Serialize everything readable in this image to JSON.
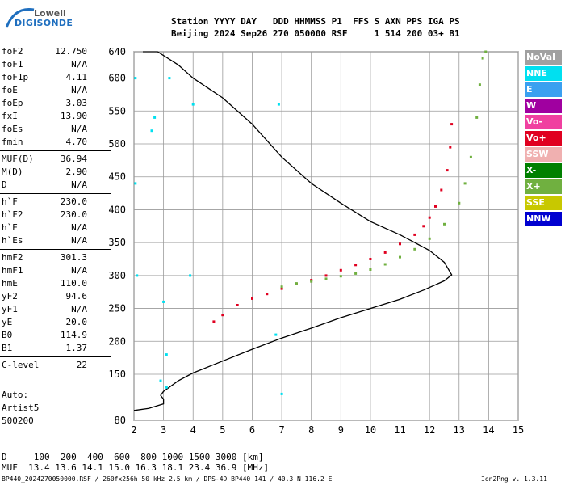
{
  "logo": {
    "line1": "Lowell",
    "line2": "DIGISONDE"
  },
  "header": {
    "line1": "Station YYYY DAY   DDD HHMMSS P1  FFS S AXN PPS IGA PS",
    "line2": "Beijing 2024 Sep26 270 050000 RSF     1 514 200 03+ B1"
  },
  "params": [
    {
      "group": [
        {
          "label": "foF2",
          "value": "12.750"
        },
        {
          "label": "foF1",
          "value": "N/A"
        },
        {
          "label": "foF1p",
          "value": "4.11"
        },
        {
          "label": "foE",
          "value": "N/A"
        },
        {
          "label": "foEp",
          "value": "3.03"
        },
        {
          "label": "fxI",
          "value": "13.90"
        },
        {
          "label": "foEs",
          "value": "N/A"
        },
        {
          "label": "fmin",
          "value": "4.70"
        }
      ]
    },
    {
      "group": [
        {
          "label": "MUF(D)",
          "value": "36.94"
        },
        {
          "label": "M(D)",
          "value": "2.90"
        },
        {
          "label": "D",
          "value": "N/A"
        }
      ]
    },
    {
      "group": [
        {
          "label": "h`F",
          "value": "230.0"
        },
        {
          "label": "h`F2",
          "value": "230.0"
        },
        {
          "label": "h`E",
          "value": "N/A"
        },
        {
          "label": "h`Es",
          "value": "N/A"
        }
      ]
    },
    {
      "group": [
        {
          "label": "hmF2",
          "value": "301.3"
        },
        {
          "label": "hmF1",
          "value": "N/A"
        },
        {
          "label": "hmE",
          "value": "110.0"
        },
        {
          "label": "yF2",
          "value": "94.6"
        },
        {
          "label": "yF1",
          "value": "N/A"
        },
        {
          "label": "yE",
          "value": "20.0"
        },
        {
          "label": "B0",
          "value": "114.9"
        },
        {
          "label": "B1",
          "value": "1.37"
        }
      ]
    },
    {
      "group": [
        {
          "label": "C-level",
          "value": "22"
        }
      ]
    }
  ],
  "auto": {
    "l1": "Auto:",
    "l2": "Artist5",
    "l3": "500200"
  },
  "legend": [
    {
      "label": "NoVal",
      "color": "#a0a0a0"
    },
    {
      "label": "NNE",
      "color": "#00e0f0"
    },
    {
      "label": "E",
      "color": "#3aa0f0"
    },
    {
      "label": "W",
      "color": "#a000a0"
    },
    {
      "label": "Vo-",
      "color": "#f040a0"
    },
    {
      "label": "Vo+",
      "color": "#e00020"
    },
    {
      "label": "SSW",
      "color": "#f0b0b0"
    },
    {
      "label": "X-",
      "color": "#008000"
    },
    {
      "label": "X+",
      "color": "#70b040"
    },
    {
      "label": "SSE",
      "color": "#c8c800"
    },
    {
      "label": "NNW",
      "color": "#0000d0"
    }
  ],
  "muf_table": {
    "row1": "D     100  200  400  600  800 1000 1500 3000 [km]",
    "row2": "MUF  13.4 13.6 14.1 15.0 16.3 18.1 23.4 36.9 [MHz]"
  },
  "footer": {
    "left": "BP440_2024270050000.RSF / 260fx256h 50 kHz 2.5 km / DPS-4D BP440 141 / 40.3 N 116.2 E",
    "right": "Ion2Png v. 1.3.11"
  },
  "chart_data": {
    "type": "scatter",
    "x_ticks": [
      2,
      3,
      4,
      5,
      6,
      7,
      8,
      9,
      10,
      11,
      12,
      13,
      14,
      15
    ],
    "y_ticks": [
      80,
      150,
      200,
      250,
      300,
      350,
      400,
      450,
      500,
      550,
      600,
      640
    ],
    "xlim": [
      2,
      15
    ],
    "ylim": [
      80,
      640
    ],
    "grid": true,
    "series": [
      {
        "name": "Vo-",
        "color": "#e00020",
        "x": [
          4.7,
          5.0,
          5.5,
          6.0,
          6.5,
          7.0,
          7.5,
          8.0,
          8.5,
          9.0,
          9.5,
          10.0,
          10.5,
          11.0,
          11.5,
          11.8,
          12.0,
          12.2,
          12.4,
          12.6,
          12.7,
          12.75
        ],
        "y": [
          230,
          240,
          255,
          265,
          272,
          280,
          287,
          293,
          300,
          308,
          316,
          325,
          335,
          348,
          362,
          375,
          388,
          405,
          430,
          460,
          495,
          530
        ]
      },
      {
        "name": "X+",
        "color": "#70b040",
        "x": [
          7.0,
          7.5,
          8.0,
          8.5,
          9.0,
          9.5,
          10.0,
          10.5,
          11.0,
          11.5,
          12.0,
          12.5,
          13.0,
          13.2,
          13.4,
          13.6,
          13.7,
          13.8,
          13.9
        ],
        "y": [
          283,
          288,
          291,
          295,
          299,
          303,
          309,
          317,
          328,
          340,
          356,
          378,
          410,
          440,
          480,
          540,
          590,
          630,
          640
        ]
      },
      {
        "name": "NNE",
        "color": "#00e0f0",
        "x": [
          2.05,
          2.05,
          2.1,
          2.6,
          2.7,
          2.9,
          3.0,
          3.1,
          3.1,
          3.2,
          3.9,
          4.0,
          6.8,
          6.9,
          7.0
        ],
        "y": [
          600,
          440,
          300,
          520,
          540,
          140,
          260,
          180,
          130,
          600,
          300,
          560,
          210,
          560,
          120
        ]
      }
    ],
    "profile": {
      "name": "N(h) profile",
      "x": [
        2.0,
        2.5,
        3.0,
        3.0,
        2.9,
        3.0,
        3.5,
        4.0,
        5.0,
        6.0,
        7.0,
        8.0,
        9.0,
        10.0,
        11.0,
        11.8,
        12.5,
        12.75,
        12.5,
        12.0,
        11.0,
        10.0,
        9.0,
        8.0,
        7.0,
        6.0,
        5.0,
        4.0,
        3.5,
        2.8,
        2.3
      ],
      "y": [
        95,
        98,
        105,
        112,
        118,
        124,
        140,
        152,
        170,
        188,
        205,
        220,
        236,
        250,
        264,
        278,
        292,
        301,
        320,
        338,
        362,
        382,
        410,
        440,
        480,
        530,
        570,
        600,
        620,
        640,
        650
      ]
    }
  }
}
